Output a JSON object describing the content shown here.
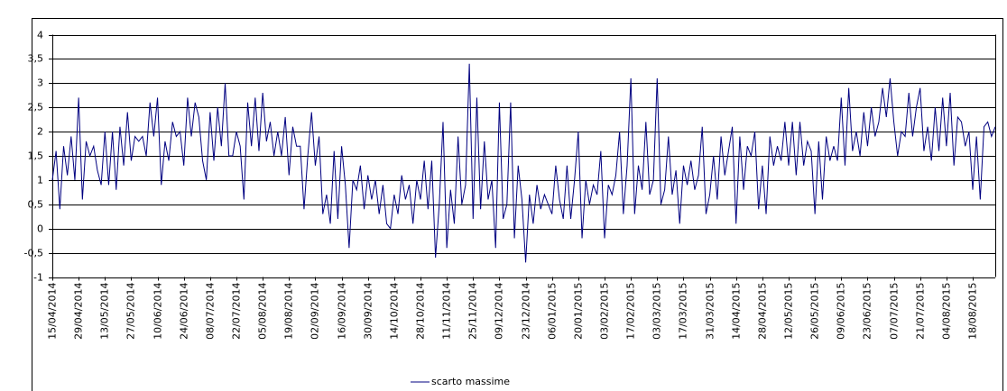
{
  "chart_data": {
    "type": "line",
    "categories": [
      "15/04/2014",
      null,
      null,
      null,
      null,
      null,
      null,
      "29/04/2014",
      null,
      null,
      null,
      null,
      null,
      null,
      "13/05/2014",
      null,
      null,
      null,
      null,
      null,
      null,
      "27/05/2014",
      null,
      null,
      null,
      null,
      null,
      null,
      "10/06/2014",
      null,
      null,
      null,
      null,
      null,
      null,
      "24/06/2014",
      null,
      null,
      null,
      null,
      null,
      null,
      "08/07/2014",
      null,
      null,
      null,
      null,
      null,
      null,
      "22/07/2014",
      null,
      null,
      null,
      null,
      null,
      null,
      "05/08/2014",
      null,
      null,
      null,
      null,
      null,
      null,
      "19/08/2014",
      null,
      null,
      null,
      null,
      null,
      null,
      "02/09/2014",
      null,
      null,
      null,
      null,
      null,
      null,
      "16/09/2014",
      null,
      null,
      null,
      null,
      null,
      null,
      "30/09/2014",
      null,
      null,
      null,
      null,
      null,
      null,
      "14/10/2014",
      null,
      null,
      null,
      null,
      null,
      null,
      "28/10/2014",
      null,
      null,
      null,
      null,
      null,
      null,
      "11/11/2014",
      null,
      null,
      null,
      null,
      null,
      null,
      "25/11/2014",
      null,
      null,
      null,
      null,
      null,
      null,
      "09/12/2014",
      null,
      null,
      null,
      null,
      null,
      null,
      "23/12/2014",
      null,
      null,
      null,
      null,
      null,
      null,
      "06/01/2015",
      null,
      null,
      null,
      null,
      null,
      null,
      "20/01/2015",
      null,
      null,
      null,
      null,
      null,
      null,
      "03/02/2015",
      null,
      null,
      null,
      null,
      null,
      null,
      "17/02/2015",
      null,
      null,
      null,
      null,
      null,
      null,
      "03/03/2015",
      null,
      null,
      null,
      null,
      null,
      null,
      "17/03/2015",
      null,
      null,
      null,
      null,
      null,
      null,
      "31/03/2015",
      null,
      null,
      null,
      null,
      null,
      null,
      "14/04/2015",
      null,
      null,
      null,
      null,
      null,
      null,
      "28/04/2015",
      null,
      null,
      null,
      null,
      null,
      null,
      "12/05/2015",
      null,
      null,
      null,
      null,
      null,
      null,
      "26/05/2015",
      null,
      null,
      null,
      null,
      null,
      null,
      "09/06/2015",
      null,
      null,
      null,
      null,
      null,
      null,
      "23/06/2015",
      null,
      null,
      null,
      null,
      null,
      null,
      "07/07/2015",
      null,
      null,
      null,
      null,
      null,
      null,
      "21/07/2015",
      null,
      null,
      null,
      null,
      null,
      null,
      "04/08/2015",
      null,
      null,
      null,
      null,
      null,
      null,
      "18/08/2015",
      null,
      null,
      null,
      null,
      null,
      null
    ],
    "series": [
      {
        "name": "scarto massime",
        "color": "#000080",
        "values": [
          1.0,
          1.6,
          0.4,
          1.7,
          1.1,
          1.9,
          1.0,
          2.7,
          0.6,
          1.8,
          1.5,
          1.7,
          1.2,
          0.9,
          2.0,
          0.9,
          2.0,
          0.8,
          2.1,
          1.3,
          2.4,
          1.4,
          1.9,
          1.8,
          1.9,
          1.5,
          2.6,
          1.9,
          2.7,
          0.9,
          1.8,
          1.4,
          2.2,
          1.9,
          2.0,
          1.3,
          2.7,
          1.9,
          2.6,
          2.3,
          1.4,
          1.0,
          2.4,
          1.4,
          2.5,
          1.7,
          3.0,
          1.5,
          1.5,
          2.0,
          1.7,
          0.6,
          2.6,
          1.7,
          2.7,
          1.6,
          2.8,
          1.8,
          2.2,
          1.5,
          2.0,
          1.5,
          2.3,
          1.1,
          2.1,
          1.7,
          1.7,
          0.4,
          1.5,
          2.4,
          1.3,
          1.9,
          0.3,
          0.7,
          0.1,
          1.6,
          0.2,
          1.7,
          0.9,
          -0.4,
          1.0,
          0.8,
          1.3,
          0.4,
          1.1,
          0.6,
          1.0,
          0.3,
          0.9,
          0.1,
          0.0,
          0.7,
          0.3,
          1.1,
          0.6,
          0.9,
          0.1,
          1.0,
          0.6,
          1.4,
          0.4,
          1.4,
          -0.6,
          0.5,
          2.2,
          -0.4,
          0.8,
          0.1,
          1.9,
          0.5,
          0.9,
          3.4,
          0.2,
          2.7,
          0.4,
          1.8,
          0.6,
          1.0,
          -0.4,
          2.6,
          0.2,
          0.5,
          2.6,
          -0.2,
          1.3,
          0.6,
          -0.7,
          0.7,
          0.1,
          0.9,
          0.4,
          0.7,
          0.5,
          0.3,
          1.3,
          0.6,
          0.2,
          1.3,
          0.2,
          1.0,
          2.0,
          -0.2,
          1.0,
          0.5,
          0.9,
          0.7,
          1.6,
          -0.2,
          0.9,
          0.7,
          1.1,
          2.0,
          0.3,
          1.3,
          3.1,
          0.3,
          1.3,
          0.8,
          2.2,
          0.7,
          1.0,
          3.1,
          0.5,
          0.8,
          1.9,
          0.7,
          1.2,
          0.1,
          1.3,
          0.9,
          1.4,
          0.8,
          1.1,
          2.1,
          0.3,
          0.7,
          1.5,
          0.6,
          1.9,
          1.1,
          1.6,
          2.1,
          0.1,
          1.9,
          0.8,
          1.7,
          1.5,
          2.0,
          0.4,
          1.3,
          0.3,
          1.9,
          1.3,
          1.7,
          1.4,
          2.2,
          1.3,
          2.2,
          1.1,
          2.2,
          1.3,
          1.8,
          1.6,
          0.3,
          1.8,
          0.6,
          1.9,
          1.4,
          1.7,
          1.4,
          2.7,
          1.3,
          2.9,
          1.6,
          2.0,
          1.5,
          2.4,
          1.7,
          2.5,
          1.9,
          2.2,
          2.9,
          2.3,
          3.1,
          2.2,
          1.5,
          2.0,
          1.9,
          2.8,
          1.9,
          2.5,
          2.9,
          1.6,
          2.1,
          1.4,
          2.5,
          1.6,
          2.7,
          1.7,
          2.8,
          1.3,
          2.3,
          2.2,
          1.7,
          2.0,
          0.8,
          1.9,
          0.6,
          2.1,
          2.2,
          1.9,
          2.1
        ]
      }
    ],
    "ylim": [
      -1,
      4
    ],
    "yticks": [
      -1,
      {
        "value": -0.5,
        "label": "-0,5"
      },
      0,
      {
        "value": 0.5,
        "label": "0,5"
      },
      1,
      {
        "value": 1.5,
        "label": "1,5"
      },
      2,
      {
        "value": 2.5,
        "label": "2,5"
      },
      3,
      {
        "value": 3.5,
        "label": "3,5"
      },
      4
    ],
    "grid": true,
    "legend": "bottom"
  }
}
